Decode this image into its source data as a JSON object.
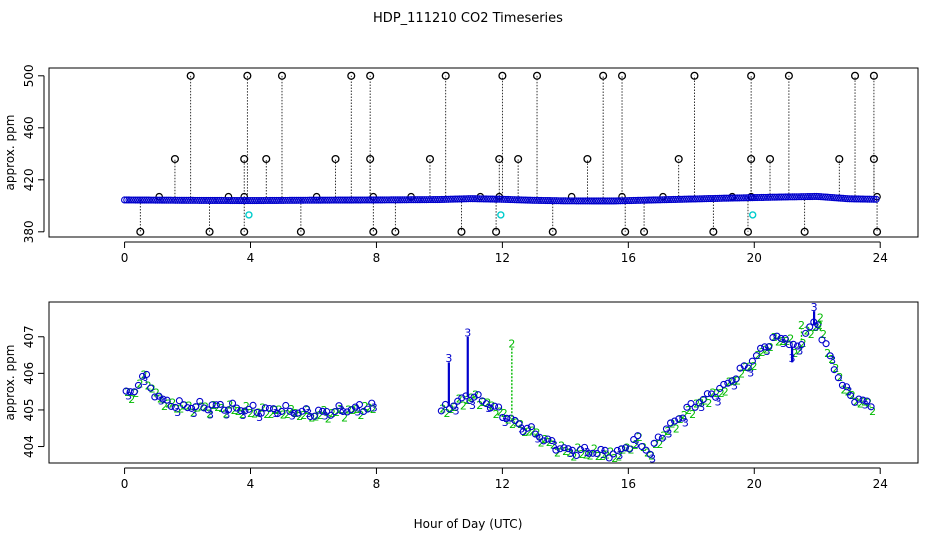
{
  "chart_data": {
    "type": "scatter",
    "title": "HDP_111210  CO2 Timeseries",
    "xlabel": "Hour of Day (UTC)",
    "colors": {
      "series1": "#0000cc",
      "series2": "#00bb00",
      "marker": "#000000",
      "outlier": "#00cccc"
    },
    "panels": [
      {
        "name": "top",
        "ylabel": "approx. ppm",
        "xlim": [
          -2.4,
          25.2
        ],
        "ylim": [
          376,
          506
        ],
        "x_ticks": [
          "0",
          "4",
          "8",
          "12",
          "16",
          "20",
          "24"
        ],
        "y_ticks": [
          "380",
          "420",
          "460",
          "500"
        ],
        "baseline": [
          [
            0,
            404.5
          ],
          [
            2,
            404.2
          ],
          [
            4,
            404.0
          ],
          [
            6,
            404.3
          ],
          [
            8,
            404.5
          ],
          [
            10,
            404.8
          ],
          [
            11,
            405.5
          ],
          [
            12,
            405.0
          ],
          [
            13,
            404.2
          ],
          [
            14,
            403.8
          ],
          [
            15.5,
            403.7
          ],
          [
            16,
            404.0
          ],
          [
            17,
            404.6
          ],
          [
            18,
            405.2
          ],
          [
            19,
            405.8
          ],
          [
            20,
            406.3
          ],
          [
            21,
            406.8
          ],
          [
            22,
            407.2
          ],
          [
            23,
            405.4
          ],
          [
            23.8,
            405.0
          ]
        ],
        "spikes_high": [
          2.1,
          3.9,
          5.0,
          7.2,
          7.8,
          10.2,
          12.0,
          13.1,
          15.2,
          15.8,
          18.1,
          19.9,
          21.1,
          23.2,
          23.8
        ],
        "spikes_mid": [
          1.6,
          3.8,
          4.5,
          6.7,
          7.8,
          9.7,
          11.9,
          12.5,
          14.7,
          17.6,
          19.9,
          20.5,
          22.7,
          23.8
        ],
        "spikes_low": [
          0.5,
          2.7,
          3.8,
          5.6,
          7.9,
          8.6,
          10.7,
          11.8,
          13.6,
          15.9,
          16.5,
          18.7,
          19.8,
          21.6,
          23.9
        ],
        "mid_markers": [
          1.1,
          3.3,
          3.8,
          6.1,
          7.9,
          9.1,
          11.3,
          11.9,
          14.2,
          15.8,
          17.1,
          19.3,
          19.9,
          23.9
        ],
        "outliers": [
          [
            3.95,
            393
          ],
          [
            11.95,
            393
          ],
          [
            19.95,
            393
          ]
        ]
      },
      {
        "name": "bottom",
        "ylabel": "approx. ppm",
        "xlim": [
          -2.4,
          25.2
        ],
        "ylim": [
          403.55,
          407.95
        ],
        "x_ticks": [
          "0",
          "4",
          "8",
          "12",
          "16",
          "20",
          "24"
        ],
        "y_ticks": [
          "404",
          "405",
          "406",
          "407"
        ],
        "series_labels": [
          "3",
          "2"
        ],
        "gap": [
          7.9,
          10.0
        ],
        "curve": [
          [
            0,
            405.4
          ],
          [
            0.3,
            405.5
          ],
          [
            0.6,
            406.0
          ],
          [
            0.9,
            405.5
          ],
          [
            1.3,
            405.2
          ],
          [
            2,
            405.1
          ],
          [
            3,
            405.1
          ],
          [
            4,
            405.0
          ],
          [
            5,
            405.0
          ],
          [
            6,
            404.9
          ],
          [
            7,
            405.0
          ],
          [
            7.9,
            405.1
          ],
          [
            10,
            404.9
          ],
          [
            10.3,
            405.1
          ],
          [
            11,
            405.4
          ],
          [
            11.5,
            405.2
          ],
          [
            12,
            404.9
          ],
          [
            12.5,
            404.6
          ],
          [
            13,
            404.4
          ],
          [
            13.5,
            404.1
          ],
          [
            14,
            403.9
          ],
          [
            15,
            403.85
          ],
          [
            15.6,
            403.8
          ],
          [
            16.3,
            404.2
          ],
          [
            16.7,
            403.8
          ],
          [
            17,
            404.3
          ],
          [
            18,
            405.1
          ],
          [
            19,
            405.6
          ],
          [
            20,
            406.4
          ],
          [
            20.5,
            406.9
          ],
          [
            21,
            407.0
          ],
          [
            21.3,
            406.6
          ],
          [
            21.7,
            407.2
          ],
          [
            22,
            407.4
          ],
          [
            22.5,
            406.2
          ],
          [
            23,
            405.4
          ],
          [
            23.8,
            405.1
          ]
        ],
        "blue_spikes": [
          [
            10.3,
            406.3
          ],
          [
            10.9,
            407.0
          ],
          [
            21.2,
            406.3
          ],
          [
            21.9,
            407.7
          ]
        ],
        "green_spikes": [
          [
            12.3,
            406.7
          ],
          [
            21.5,
            407.2
          ],
          [
            22.1,
            407.4
          ]
        ]
      }
    ]
  }
}
